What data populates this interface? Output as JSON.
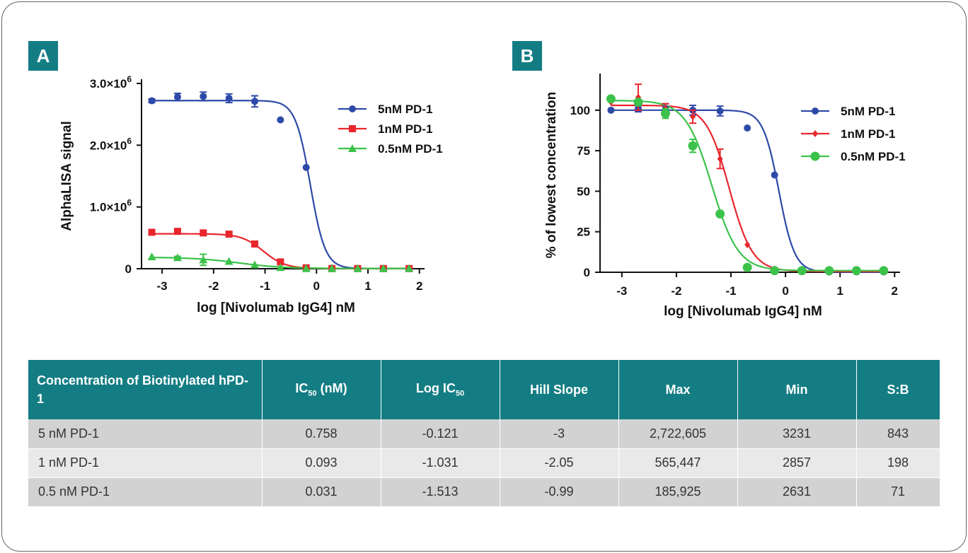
{
  "panels": {
    "a_label": "A",
    "b_label": "B"
  },
  "colors": {
    "teal": "#147d84",
    "blue": "#2e4aa8",
    "red": "#e8262c",
    "green": "#3cc24a"
  },
  "chart_data": [
    {
      "type": "line",
      "panel": "A",
      "xlabel": "log [Nivolumab IgG4] nM",
      "ylabel": "AlphaLISA signal",
      "xlim": [
        -3.4,
        2.1
      ],
      "ylim": [
        0,
        3000000
      ],
      "xticks": [
        "-3",
        "-2",
        "-1",
        "0",
        "1",
        "2"
      ],
      "xtick_values": [
        -3,
        -2,
        -1,
        0,
        1,
        2
      ],
      "yticks": [
        {
          "value": 0,
          "base": "0",
          "exp": ""
        },
        {
          "value": 1000000,
          "base": "1.0×10",
          "exp": "6"
        },
        {
          "value": 2000000,
          "base": "2.0×10",
          "exp": "6"
        },
        {
          "value": 3000000,
          "base": "3.0×10",
          "exp": "6"
        }
      ],
      "legend_placement": "top-right",
      "x": [
        -3.2,
        -2.7,
        -2.2,
        -1.7,
        -1.2,
        -0.7,
        -0.2,
        0.3,
        0.8,
        1.3,
        1.8
      ],
      "series": [
        {
          "name": "5nM PD-1",
          "marker": "circle",
          "color": "#2e4aa8",
          "values": [
            2720000,
            2780000,
            2790000,
            2760000,
            2710000,
            2410000,
            1640000,
            10000,
            3000,
            3000,
            3000
          ],
          "errors": [
            30000,
            60000,
            70000,
            70000,
            90000,
            0,
            0,
            0,
            0,
            0,
            0
          ],
          "fit": {
            "top": 2722605,
            "bottom": 3231,
            "logIC50": -0.121,
            "hill": -3
          }
        },
        {
          "name": "1nM PD-1",
          "marker": "square",
          "color": "#e8262c",
          "values": [
            590000,
            605000,
            580000,
            560000,
            400000,
            110000,
            15000,
            3000,
            3000,
            3000,
            3000
          ],
          "errors": [
            0,
            0,
            0,
            30000,
            0,
            0,
            0,
            0,
            0,
            0,
            0
          ],
          "fit": {
            "top": 565447,
            "bottom": 2857,
            "logIC50": -1.031,
            "hill": -2.05
          }
        },
        {
          "name": "0.5nM PD-1",
          "marker": "triangle",
          "color": "#3cc24a",
          "values": [
            195000,
            180000,
            145000,
            120000,
            65000,
            20000,
            3000,
            3000,
            3000,
            3000,
            3000
          ],
          "errors": [
            0,
            20000,
            90000,
            0,
            0,
            0,
            0,
            0,
            0,
            0,
            0
          ],
          "fit": {
            "top": 185925,
            "bottom": 2631,
            "logIC50": -1.513,
            "hill": -0.99
          }
        }
      ]
    },
    {
      "type": "line",
      "panel": "B",
      "xlabel": "log [Nivolumab IgG4] nM",
      "ylabel": "% of lowest concentration",
      "xlim": [
        -3.4,
        2.1
      ],
      "ylim": [
        0,
        120
      ],
      "xticks": [
        "-3",
        "-2",
        "-1",
        "0",
        "1",
        "2"
      ],
      "xtick_values": [
        -3,
        -2,
        -1,
        0,
        1,
        2
      ],
      "yticks": [
        {
          "value": 0,
          "base": "0",
          "exp": ""
        },
        {
          "value": 25,
          "base": "25",
          "exp": ""
        },
        {
          "value": 50,
          "base": "50",
          "exp": ""
        },
        {
          "value": 75,
          "base": "75",
          "exp": ""
        },
        {
          "value": 100,
          "base": "100",
          "exp": ""
        }
      ],
      "legend_placement": "top-right",
      "x": [
        -3.2,
        -2.7,
        -2.2,
        -1.7,
        -1.2,
        -0.7,
        -0.2,
        0.3,
        0.8,
        1.3,
        1.8
      ],
      "series": [
        {
          "name": "5nM PD-1",
          "marker": "circle",
          "color": "#2e4aa8",
          "values": [
            100,
            101,
            101,
            100,
            99.5,
            89,
            60,
            0.5,
            0.2,
            0.2,
            0.2
          ],
          "errors": [
            0,
            2,
            3,
            3,
            3,
            0,
            0,
            0,
            0,
            0,
            0
          ],
          "fit": {
            "top": 100,
            "bottom": 0.1,
            "logIC50": -0.121,
            "hill": -3
          }
        },
        {
          "name": "1nM PD-1",
          "marker": "diamond",
          "color": "#e8262c",
          "values": [
            105,
            108,
            101,
            96,
            70,
            17,
            2,
            0.5,
            0.5,
            0.5,
            0.5
          ],
          "errors": [
            0,
            8,
            3,
            4,
            6,
            0,
            0,
            0,
            0,
            0,
            0
          ],
          "fit": {
            "top": 103,
            "bottom": 0.5,
            "logIC50": -1.031,
            "hill": -2.05
          }
        },
        {
          "name": "0.5nM PD-1",
          "marker": "circle",
          "color": "#3cc24a",
          "values": [
            107,
            105,
            98,
            78,
            36,
            3,
            1,
            1,
            1,
            1,
            1
          ],
          "errors": [
            0,
            0,
            3,
            4,
            0,
            0,
            0,
            0,
            0,
            0,
            0
          ],
          "fit": {
            "top": 106,
            "bottom": 1,
            "logIC50": -1.513,
            "hill": -0.99,
            "display_logIC50": -1.35,
            "display_hill": -1.8
          }
        }
      ]
    }
  ],
  "table": {
    "headers": {
      "concentration": "Concentration of Biotinylated hPD-1",
      "ic50_prefix": "IC",
      "ic50_sub": "50",
      "ic50_suffix": " (nM)",
      "logic50_prefix": "Log IC",
      "logic50_sub": "50",
      "hill": "Hill Slope",
      "max": "Max",
      "min": "Min",
      "sb": "S:B"
    },
    "rows": [
      {
        "conc": "5 nM PD-1",
        "ic50": "0.758",
        "logic50": "-0.121",
        "hill": "-3",
        "max": "2,722,605",
        "min": "3231",
        "sb": "843"
      },
      {
        "conc": "1 nM PD-1",
        "ic50": "0.093",
        "logic50": "-1.031",
        "hill": "-2.05",
        "max": "565,447",
        "min": "2857",
        "sb": "198"
      },
      {
        "conc": "0.5 nM PD-1",
        "ic50": "0.031",
        "logic50": "-1.513",
        "hill": "-0.99",
        "max": "185,925",
        "min": "2631",
        "sb": "71"
      }
    ]
  }
}
